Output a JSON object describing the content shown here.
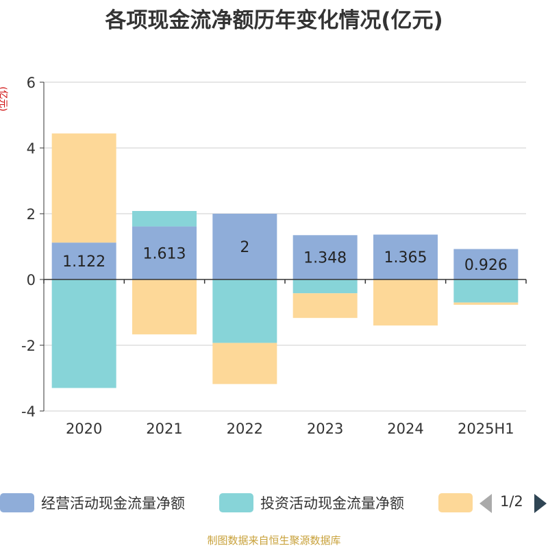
{
  "title": "各项现金流净额历年变化情况(亿元)",
  "unit_label": "(亿元)",
  "source": "制图数据来自恒生聚源数据库",
  "legend_page": "1/2",
  "chart_data": {
    "type": "bar",
    "stacked": true,
    "categories": [
      "2020",
      "2021",
      "2022",
      "2023",
      "2024",
      "2025H1"
    ],
    "ylim": [
      -4,
      6
    ],
    "yticks": [
      -4,
      -2,
      0,
      2,
      4,
      6
    ],
    "grid": true,
    "legend_position": "bottom",
    "series": [
      {
        "name": "经营活动现金流量净额",
        "color": "#8fadd9",
        "values": [
          1.122,
          1.613,
          2,
          1.348,
          1.365,
          0.926
        ],
        "labels": [
          "1.122",
          "1.613",
          "2",
          "1.348",
          "1.365",
          "0.926"
        ]
      },
      {
        "name": "投资活动现金流量净额",
        "color": "#87d4d8",
        "values": [
          -3.3,
          0.47,
          -1.93,
          -0.42,
          0,
          -0.7
        ],
        "labels": []
      },
      {
        "name": "",
        "color": "#fdd898",
        "values": [
          3.32,
          -1.67,
          -1.25,
          -0.75,
          -1.4,
          -0.07
        ],
        "labels": []
      }
    ]
  }
}
